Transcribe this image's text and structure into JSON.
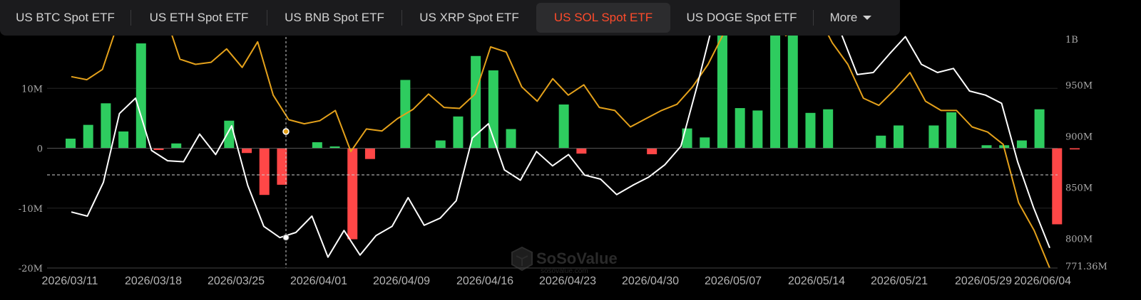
{
  "tabs": [
    {
      "label": "US BTC Spot ETF",
      "active": false
    },
    {
      "label": "US ETH Spot ETF",
      "active": false
    },
    {
      "label": "US BNB Spot ETF",
      "active": false
    },
    {
      "label": "US XRP Spot ETF",
      "active": false
    },
    {
      "label": "US SOL Spot ETF",
      "active": true
    },
    {
      "label": "US DOGE Spot ETF",
      "active": false
    }
  ],
  "more_label": "More",
  "watermark": {
    "brand": "SoSoValue",
    "url": "sosovalue.com"
  },
  "colors": {
    "inflow": "#2ecc5f",
    "outflow": "#ff4747",
    "total_net_assets": "#e4a11b",
    "price": "#ffffff",
    "active_tab": "#ff4b2b"
  },
  "chart_data": {
    "type": "bar",
    "x_labels": [
      "2026/03/11",
      "2026/03/18",
      "2026/03/25",
      "2026/04/01",
      "2026/04/09",
      "2026/04/16",
      "2026/04/23",
      "2026/04/30",
      "2026/05/07",
      "2026/05/14",
      "2026/05/21",
      "2026/05/29",
      "2026/06/04"
    ],
    "y_left": {
      "ticks": [
        "10M",
        "0",
        "-10M",
        "-20M"
      ],
      "tick_values": [
        10,
        0,
        -10,
        -20
      ],
      "range": [
        -20,
        20
      ],
      "unit": "M"
    },
    "y_right": {
      "ticks": [
        "1B",
        "950M",
        "900M",
        "850M",
        "800M",
        "771.36M"
      ],
      "tick_values": [
        1000,
        950,
        900,
        850,
        800,
        771.36
      ],
      "range": [
        771.36,
        1005
      ]
    },
    "grid": true,
    "series": [
      {
        "kind": "bar",
        "axis": "left",
        "values": [
          1.6,
          3.9,
          7.5,
          2.8,
          17.5,
          -0.3,
          0.8,
          0,
          0,
          4.6,
          -0.8,
          -7.8,
          -6.1,
          0,
          1.0,
          0.3,
          -15.2,
          -1.8,
          0,
          11.4,
          0,
          1.3,
          5.3,
          15.4,
          13.0,
          3.2,
          0,
          0,
          7.3,
          -0.9,
          0,
          0,
          0,
          -1.0,
          0,
          3.3,
          1.8,
          20,
          6.7,
          6.3,
          20,
          20,
          5.9,
          6.5,
          0,
          0,
          2.1,
          3.8,
          0,
          3.8,
          6.0,
          0,
          0.5,
          0.5,
          1.3,
          6.5,
          -12.7,
          -0.2
        ]
      },
      {
        "kind": "line",
        "name": "",
        "axis": "right",
        "values": [
          958,
          955,
          965,
          1010,
          1020,
          1020,
          1020,
          975,
          970,
          972,
          985,
          967,
          992,
          940,
          916,
          912,
          915,
          925,
          885,
          907,
          905,
          917,
          926,
          941,
          928,
          927,
          941,
          987,
          982,
          948,
          934,
          956,
          940,
          950,
          928,
          925,
          909,
          917,
          925,
          931,
          948,
          970,
          1000,
          1015,
          1000,
          1020,
          998,
          1005,
          1020,
          991,
          970,
          937,
          930,
          945,
          962,
          934,
          925,
          925,
          909,
          904,
          892,
          835,
          808,
          771.36
        ]
      },
      {
        "kind": "line",
        "name": "",
        "axis": "right",
        "values": [
          826,
          822,
          855,
          922,
          937,
          886,
          876,
          875,
          902,
          882,
          910,
          852,
          812,
          801,
          806,
          822,
          782,
          808,
          784,
          803,
          812,
          840,
          813,
          820,
          837,
          898,
          912,
          867,
          857,
          885,
          871,
          882,
          862,
          858,
          843,
          852,
          860,
          872,
          890,
          948,
          1010,
          1020,
          1020,
          1020,
          1020,
          1020,
          1020,
          1010,
          1000,
          960,
          962,
          980,
          997,
          970,
          962,
          966,
          944,
          940,
          932,
          875,
          830,
          791
        ]
      }
    ],
    "crosshair_x": "2026/03/25"
  }
}
